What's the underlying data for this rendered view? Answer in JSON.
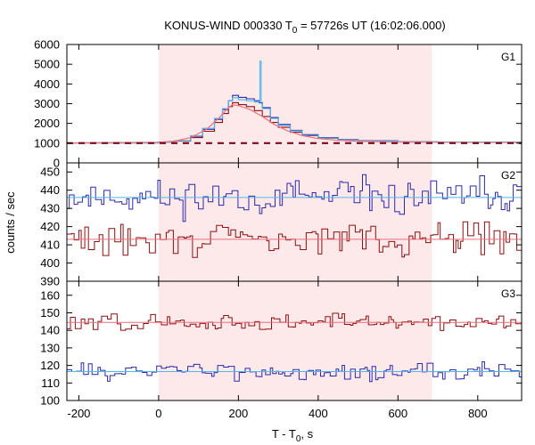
{
  "chart_data": {
    "type": "line",
    "title": "KONUS-WIND 000330 T",
    "title_sub": "0",
    "title_rest": " = 57726s UT (16:02:06.000)",
    "xlabel": "T - T",
    "xlabel_sub": "0",
    "xlabel_rest": ", s",
    "ylabel": "counts / sec",
    "xlim": [
      -230,
      910
    ],
    "xticks": [
      -200,
      0,
      200,
      400,
      600,
      800
    ],
    "x_tick_labels": [
      "-200",
      "0",
      "200",
      "400",
      "600",
      "800"
    ],
    "highlight_interval": [
      0,
      685
    ],
    "colors": {
      "highlight": "#fde8ea",
      "blue_series": "#2a2aaa",
      "red_series": "#8b1010",
      "cyan_series": "#4fb8e8",
      "pink_fit": "#ef6f7d",
      "dark_red_dashed": "#7a0a1c"
    },
    "panels": [
      {
        "name": "G1",
        "ylim": [
          0,
          6000
        ],
        "yticks": [
          0,
          1000,
          2000,
          3000,
          4000,
          5000,
          6000
        ],
        "series": [
          {
            "role": "sum",
            "values": [
              [
                -230,
                1010
              ],
              [
                -200,
                1020
              ],
              [
                -100,
                1030
              ],
              [
                0,
                1060
              ],
              [
                40,
                1120
              ],
              [
                80,
                1350
              ],
              [
                110,
                1700
              ],
              [
                140,
                2200
              ],
              [
                160,
                2700
              ],
              [
                175,
                3150
              ],
              [
                185,
                3420
              ],
              [
                200,
                3320
              ],
              [
                220,
                3250
              ],
              [
                240,
                3150
              ],
              [
                252,
                3050
              ],
              [
                260,
                2800
              ],
              [
                280,
                2300
              ],
              [
                300,
                1950
              ],
              [
                330,
                1650
              ],
              [
                360,
                1430
              ],
              [
                400,
                1280
              ],
              [
                450,
                1180
              ],
              [
                500,
                1120
              ],
              [
                600,
                1070
              ],
              [
                700,
                1050
              ],
              [
                910,
                1045
              ]
            ]
          },
          {
            "role": "red",
            "values": [
              [
                -230,
                1010
              ],
              [
                0,
                1040
              ],
              [
                40,
                1100
              ],
              [
                80,
                1280
              ],
              [
                110,
                1600
              ],
              [
                140,
                2050
              ],
              [
                160,
                2500
              ],
              [
                175,
                2850
              ],
              [
                185,
                3050
              ],
              [
                200,
                2950
              ],
              [
                220,
                2850
              ],
              [
                240,
                2650
              ],
              [
                260,
                2350
              ],
              [
                280,
                2050
              ],
              [
                300,
                1800
              ],
              [
                330,
                1550
              ],
              [
                360,
                1380
              ],
              [
                400,
                1250
              ],
              [
                450,
                1160
              ],
              [
                500,
                1110
              ],
              [
                600,
                1060
              ],
              [
                910,
                1040
              ]
            ]
          },
          {
            "role": "cyan",
            "values": [
              [
                -230,
                1000
              ],
              [
                0,
                1040
              ],
              [
                40,
                1120
              ],
              [
                80,
                1380
              ],
              [
                110,
                1750
              ],
              [
                140,
                2250
              ],
              [
                160,
                2750
              ],
              [
                175,
                3150
              ],
              [
                185,
                3300
              ],
              [
                200,
                3200
              ],
              [
                220,
                3150
              ],
              [
                240,
                3080
              ],
              [
                252,
                3100
              ],
              [
                254,
                5150
              ],
              [
                257,
                3000
              ],
              [
                260,
                2750
              ],
              [
                280,
                2250
              ],
              [
                300,
                1900
              ],
              [
                330,
                1620
              ],
              [
                360,
                1400
              ],
              [
                400,
                1260
              ],
              [
                450,
                1160
              ],
              [
                500,
                1100
              ],
              [
                600,
                1060
              ],
              [
                910,
                1030
              ]
            ]
          },
          {
            "role": "fit",
            "values": [
              [
                -230,
                1010
              ],
              [
                0,
                1040
              ],
              [
                40,
                1100
              ],
              [
                80,
                1280
              ],
              [
                120,
                1700
              ],
              [
                150,
                2250
              ],
              [
                170,
                2700
              ],
              [
                185,
                2950
              ],
              [
                200,
                2900
              ],
              [
                230,
                2700
              ],
              [
                260,
                2350
              ],
              [
                290,
                1950
              ],
              [
                320,
                1650
              ],
              [
                360,
                1380
              ],
              [
                400,
                1230
              ],
              [
                450,
                1140
              ],
              [
                500,
                1090
              ],
              [
                600,
                1050
              ],
              [
                910,
                1030
              ]
            ]
          },
          {
            "role": "background",
            "values": [
              [
                -230,
                1000
              ],
              [
                910,
                1000
              ]
            ]
          }
        ]
      },
      {
        "name": "G2",
        "ylim": [
          390,
          455
        ],
        "yticks": [
          390,
          400,
          410,
          420,
          430,
          440,
          450
        ],
        "series": [
          {
            "role": "blue",
            "level": 436,
            "spread": 6,
            "seed": 11
          },
          {
            "role": "red",
            "level": 413,
            "spread": 5.5,
            "seed": 29
          },
          {
            "role": "blue-fit",
            "values": [
              [
                -230,
                436
              ],
              [
                910,
                436
              ]
            ]
          },
          {
            "role": "red-fit",
            "values": [
              [
                -230,
                413
              ],
              [
                910,
                413
              ]
            ]
          }
        ]
      },
      {
        "name": "G3",
        "ylim": [
          100,
          168
        ],
        "yticks": [
          100,
          110,
          120,
          130,
          140,
          150,
          160
        ],
        "series": [
          {
            "role": "red",
            "level": 144.5,
            "spread": 3.2,
            "seed": 47
          },
          {
            "role": "blue",
            "level": 116.5,
            "spread": 3.0,
            "seed": 83
          },
          {
            "role": "red-fit",
            "values": [
              [
                -230,
                144.5
              ],
              [
                910,
                144.5
              ]
            ]
          },
          {
            "role": "blue-fit",
            "values": [
              [
                -230,
                116.5
              ],
              [
                910,
                116.5
              ]
            ]
          }
        ]
      }
    ]
  }
}
